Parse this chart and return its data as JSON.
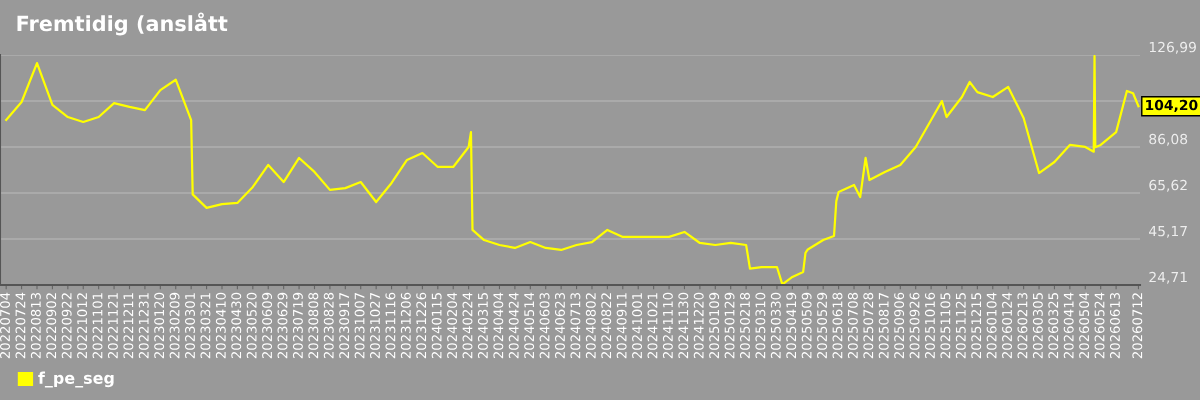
{
  "chart_data": {
    "type": "line",
    "title": "Fremtidig (anslått",
    "x": [
      "2022-07-04",
      "2022-07-24",
      "2022-08-13",
      "2022-09-02",
      "2022-09-22",
      "2022-10-12",
      "2022-11-01",
      "2022-11-21",
      "2022-12-11",
      "2022-12-31",
      "2023-01-20",
      "2023-02-09",
      "2023-03-01",
      "2023-03-03",
      "2023-03-21",
      "2023-04-10",
      "2023-04-30",
      "2023-05-20",
      "2023-06-09",
      "2023-06-29",
      "2023-07-19",
      "2023-08-08",
      "2023-08-28",
      "2023-09-17",
      "2023-10-07",
      "2023-10-27",
      "2023-11-16",
      "2023-12-06",
      "2023-12-26",
      "2024-01-15",
      "2024-02-04",
      "2024-02-24",
      "2024-02-27",
      "2024-02-29",
      "2024-03-15",
      "2024-04-04",
      "2024-04-24",
      "2024-05-14",
      "2024-06-03",
      "2024-06-23",
      "2024-07-13",
      "2024-08-02",
      "2024-08-22",
      "2024-09-11",
      "2024-10-01",
      "2024-10-21",
      "2024-11-10",
      "2024-11-30",
      "2024-12-20",
      "2025-01-09",
      "2025-01-29",
      "2025-02-18",
      "2025-02-23",
      "2025-03-10",
      "2025-03-30",
      "2025-04-06",
      "2025-04-19",
      "2025-05-03",
      "2025-05-06",
      "2025-05-09",
      "2025-05-29",
      "2025-06-12",
      "2025-06-15",
      "2025-06-18",
      "2025-07-08",
      "2025-07-16",
      "2025-07-23",
      "2025-07-28",
      "2025-08-17",
      "2025-09-06",
      "2025-09-26",
      "2025-10-16",
      "2025-10-30",
      "2025-11-05",
      "2025-11-25",
      "2025-12-05",
      "2025-12-15",
      "2026-01-04",
      "2026-01-24",
      "2026-02-13",
      "2026-03-05",
      "2026-03-25",
      "2026-04-14",
      "2026-05-04",
      "2026-05-15",
      "2026-05-16",
      "2026-05-17",
      "2026-05-24",
      "2026-06-13",
      "2026-06-27",
      "2026-07-05",
      "2026-07-12"
    ],
    "series": [
      {
        "name": "f_pe_seg",
        "color": "#ffff00",
        "values": [
          98.1,
          106.1,
          123.4,
          104.8,
          99.4,
          97.2,
          99.4,
          105.6,
          103.9,
          102.5,
          111.4,
          116,
          98,
          65,
          59.0,
          60.7,
          61.2,
          68.3,
          78.1,
          70.5,
          81.2,
          75.0,
          67.0,
          67.8,
          70.5,
          61.6,
          70.1,
          80.3,
          83.4,
          77.2,
          77.2,
          86.1,
          92.7,
          49.2,
          44.7,
          42.5,
          41.2,
          43.8,
          41.2,
          40.3,
          42.5,
          43.8,
          49.2,
          46.1,
          46.1,
          46.1,
          46.1,
          48.3,
          43.4,
          42.5,
          43.4,
          42.5,
          32.0,
          32.7,
          32.7,
          25.0,
          28.3,
          30.5,
          39.0,
          40.5,
          44.7,
          46.5,
          62.0,
          66.1,
          69.2,
          63.8,
          81.2,
          71.4,
          75.0,
          78.1,
          86.1,
          98.1,
          106.5,
          99.4,
          108.3,
          115,
          110.5,
          108.3,
          112.8,
          99.0,
          74.5,
          79.4,
          87.0,
          86.1,
          84,
          126.5,
          86,
          87.0,
          92.7,
          111.0,
          110.0,
          104.2
        ]
      }
    ],
    "xlim": [
      "2022-06-26",
      "2026-07-14"
    ],
    "xticks": [
      {
        "value": "2022-07-04",
        "label": "20220704"
      },
      {
        "value": "2022-07-24",
        "label": "20220724"
      },
      {
        "value": "2022-08-13",
        "label": "20220813"
      },
      {
        "value": "2022-09-02",
        "label": "20220902"
      },
      {
        "value": "2022-09-22",
        "label": "20220922"
      },
      {
        "value": "2022-10-12",
        "label": "20221012"
      },
      {
        "value": "2022-11-01",
        "label": "20221101"
      },
      {
        "value": "2022-11-21",
        "label": "20221121"
      },
      {
        "value": "2022-12-11",
        "label": "20221211"
      },
      {
        "value": "2022-12-31",
        "label": "20221231"
      },
      {
        "value": "2023-01-20",
        "label": "20230120"
      },
      {
        "value": "2023-02-09",
        "label": "20230209"
      },
      {
        "value": "2023-03-01",
        "label": "20230301"
      },
      {
        "value": "2023-03-21",
        "label": "20230321"
      },
      {
        "value": "2023-04-10",
        "label": "20230410"
      },
      {
        "value": "2023-04-30",
        "label": "20230430"
      },
      {
        "value": "2023-05-20",
        "label": "20230520"
      },
      {
        "value": "2023-06-09",
        "label": "20230609"
      },
      {
        "value": "2023-06-29",
        "label": "20230629"
      },
      {
        "value": "2023-07-19",
        "label": "20230719"
      },
      {
        "value": "2023-08-08",
        "label": "20230808"
      },
      {
        "value": "2023-08-28",
        "label": "20230828"
      },
      {
        "value": "2023-09-17",
        "label": "20230917"
      },
      {
        "value": "2023-10-07",
        "label": "20231007"
      },
      {
        "value": "2023-10-27",
        "label": "20231027"
      },
      {
        "value": "2023-11-16",
        "label": "20231116"
      },
      {
        "value": "2023-12-06",
        "label": "20231206"
      },
      {
        "value": "2023-12-26",
        "label": "20231226"
      },
      {
        "value": "2024-01-15",
        "label": "20240115"
      },
      {
        "value": "2024-02-04",
        "label": "20240204"
      },
      {
        "value": "2024-02-24",
        "label": "20240224"
      },
      {
        "value": "2024-03-15",
        "label": "20240315"
      },
      {
        "value": "2024-04-04",
        "label": "20240404"
      },
      {
        "value": "2024-04-24",
        "label": "20240424"
      },
      {
        "value": "2024-05-14",
        "label": "20240514"
      },
      {
        "value": "2024-06-03",
        "label": "20240603"
      },
      {
        "value": "2024-06-23",
        "label": "20240623"
      },
      {
        "value": "2024-07-13",
        "label": "20240713"
      },
      {
        "value": "2024-08-02",
        "label": "20240802"
      },
      {
        "value": "2024-08-22",
        "label": "20240822"
      },
      {
        "value": "2024-09-11",
        "label": "20240911"
      },
      {
        "value": "2024-10-01",
        "label": "20241001"
      },
      {
        "value": "2024-10-21",
        "label": "20241021"
      },
      {
        "value": "2024-11-10",
        "label": "20241110"
      },
      {
        "value": "2024-11-30",
        "label": "20241130"
      },
      {
        "value": "2024-12-20",
        "label": "20241220"
      },
      {
        "value": "2025-01-09",
        "label": "20250109"
      },
      {
        "value": "2025-01-29",
        "label": "20250129"
      },
      {
        "value": "2025-02-18",
        "label": "20250218"
      },
      {
        "value": "2025-03-10",
        "label": "20250310"
      },
      {
        "value": "2025-03-30",
        "label": "20250330"
      },
      {
        "value": "2025-04-19",
        "label": "20250419"
      },
      {
        "value": "2025-05-09",
        "label": "20250509"
      },
      {
        "value": "2025-05-29",
        "label": "20250529"
      },
      {
        "value": "2025-06-18",
        "label": "20250618"
      },
      {
        "value": "2025-07-08",
        "label": "20250708"
      },
      {
        "value": "2025-07-28",
        "label": "20250728"
      },
      {
        "value": "2025-08-17",
        "label": "20250817"
      },
      {
        "value": "2025-09-06",
        "label": "20250906"
      },
      {
        "value": "2025-09-26",
        "label": "20250926"
      },
      {
        "value": "2025-10-16",
        "label": "20251016"
      },
      {
        "value": "2025-11-05",
        "label": "20251105"
      },
      {
        "value": "2025-11-25",
        "label": "20251125"
      },
      {
        "value": "2025-12-15",
        "label": "20251215"
      },
      {
        "value": "2026-01-04",
        "label": "20260104"
      },
      {
        "value": "2026-01-24",
        "label": "20260124"
      },
      {
        "value": "2026-02-13",
        "label": "20260213"
      },
      {
        "value": "2026-03-05",
        "label": "20260305"
      },
      {
        "value": "2026-03-25",
        "label": "20260325"
      },
      {
        "value": "2026-04-14",
        "label": "20260414"
      },
      {
        "value": "2026-05-04",
        "label": "20260504"
      },
      {
        "value": "2026-05-24",
        "label": "20260524"
      },
      {
        "value": "2026-06-13",
        "label": "20260613"
      },
      {
        "value": "2026-07-12",
        "label": "20260712"
      }
    ],
    "ylim": [
      24.71,
      126.99
    ],
    "yticks": [
      {
        "value": 24.71,
        "label": "24,71"
      },
      {
        "value": 45.17,
        "label": "45,17"
      },
      {
        "value": 65.62,
        "label": "65,62"
      },
      {
        "value": 86.08,
        "label": "86,08"
      },
      {
        "value": 106.53,
        "label": null
      },
      {
        "value": 126.99,
        "label": "126,99"
      }
    ],
    "annotations": [
      {
        "text": "104,20",
        "x": "2026-07-12",
        "y": 104.2
      }
    ],
    "grid": "y",
    "legend": "bottom left",
    "marker": "none",
    "line_style": "solid"
  }
}
